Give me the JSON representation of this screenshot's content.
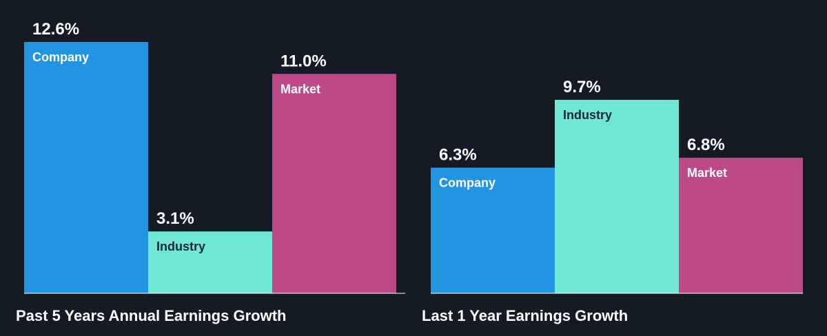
{
  "colors": {
    "background": "#151b24",
    "company": "#2394e0",
    "industry": "#71e7d6",
    "market": "#bd4a86",
    "baseline": "#ffffff",
    "text_light": "#ffffff",
    "text_dark": "#1b2733"
  },
  "chart_data": [
    {
      "type": "bar",
      "title": "Past 5 Years Annual Earnings Growth",
      "categories": [
        "Company",
        "Industry",
        "Market"
      ],
      "values": [
        12.6,
        3.1,
        11.0
      ],
      "value_labels": [
        "12.6%",
        "3.1%",
        "11.0%"
      ],
      "ylim": [
        0,
        12.6
      ],
      "grid": false,
      "legend": "none"
    },
    {
      "type": "bar",
      "title": "Last 1 Year Earnings Growth",
      "categories": [
        "Company",
        "Industry",
        "Market"
      ],
      "values": [
        6.3,
        9.7,
        6.8
      ],
      "value_labels": [
        "6.3%",
        "9.7%",
        "6.8%"
      ],
      "ylim": [
        0,
        12.6
      ],
      "grid": false,
      "legend": "none"
    }
  ]
}
